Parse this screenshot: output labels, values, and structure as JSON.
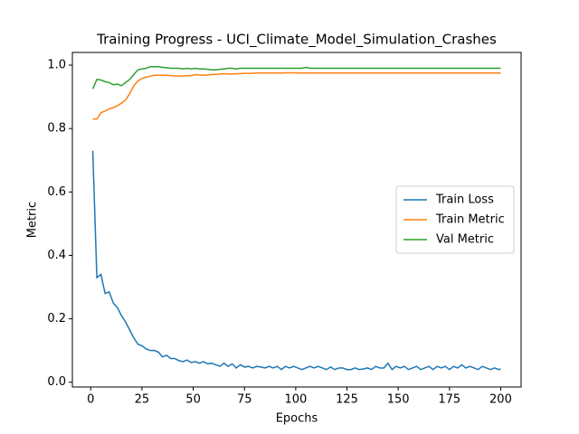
{
  "chart_data": {
    "type": "line",
    "title": "Training Progress - UCI_Climate_Model_Simulation_Crashes",
    "xlabel": "Epochs",
    "ylabel": "Metric",
    "x": [
      1,
      3,
      5,
      7,
      9,
      11,
      13,
      15,
      17,
      19,
      21,
      23,
      25,
      27,
      29,
      31,
      33,
      35,
      37,
      39,
      41,
      43,
      45,
      47,
      49,
      51,
      53,
      55,
      57,
      59,
      61,
      63,
      65,
      67,
      69,
      71,
      73,
      75,
      77,
      79,
      81,
      83,
      85,
      87,
      89,
      91,
      93,
      95,
      97,
      99,
      101,
      103,
      105,
      107,
      109,
      111,
      113,
      115,
      117,
      119,
      121,
      123,
      125,
      127,
      129,
      131,
      133,
      135,
      137,
      139,
      141,
      143,
      145,
      147,
      149,
      151,
      153,
      155,
      157,
      159,
      161,
      163,
      165,
      167,
      169,
      171,
      173,
      175,
      177,
      179,
      181,
      183,
      185,
      187,
      189,
      191,
      193,
      195,
      197,
      199,
      200
    ],
    "series": [
      {
        "name": "Train Loss",
        "color": "#1f77b4",
        "values": [
          0.73,
          0.33,
          0.34,
          0.28,
          0.285,
          0.25,
          0.235,
          0.21,
          0.19,
          0.165,
          0.14,
          0.12,
          0.115,
          0.105,
          0.1,
          0.1,
          0.095,
          0.08,
          0.085,
          0.075,
          0.075,
          0.068,
          0.065,
          0.07,
          0.062,
          0.065,
          0.06,
          0.065,
          0.058,
          0.06,
          0.055,
          0.05,
          0.06,
          0.05,
          0.058,
          0.045,
          0.055,
          0.048,
          0.05,
          0.045,
          0.05,
          0.048,
          0.045,
          0.05,
          0.045,
          0.05,
          0.04,
          0.05,
          0.045,
          0.05,
          0.045,
          0.04,
          0.045,
          0.05,
          0.045,
          0.05,
          0.045,
          0.04,
          0.048,
          0.04,
          0.045,
          0.045,
          0.04,
          0.04,
          0.045,
          0.04,
          0.042,
          0.045,
          0.04,
          0.05,
          0.045,
          0.045,
          0.06,
          0.04,
          0.05,
          0.045,
          0.05,
          0.04,
          0.045,
          0.05,
          0.04,
          0.045,
          0.05,
          0.04,
          0.05,
          0.045,
          0.05,
          0.04,
          0.05,
          0.045,
          0.055,
          0.045,
          0.05,
          0.045,
          0.04,
          0.05,
          0.045,
          0.04,
          0.045,
          0.04,
          0.042
        ]
      },
      {
        "name": "Train Metric",
        "color": "#ff7f0e",
        "values": [
          0.83,
          0.83,
          0.85,
          0.855,
          0.862,
          0.866,
          0.872,
          0.88,
          0.89,
          0.91,
          0.935,
          0.95,
          0.958,
          0.962,
          0.965,
          0.968,
          0.968,
          0.968,
          0.968,
          0.967,
          0.966,
          0.966,
          0.966,
          0.967,
          0.967,
          0.97,
          0.969,
          0.968,
          0.969,
          0.97,
          0.971,
          0.972,
          0.973,
          0.972,
          0.972,
          0.973,
          0.973,
          0.974,
          0.974,
          0.974,
          0.975,
          0.975,
          0.975,
          0.975,
          0.975,
          0.975,
          0.975,
          0.976,
          0.976,
          0.976,
          0.975,
          0.975,
          0.975,
          0.975,
          0.975,
          0.975,
          0.975,
          0.975,
          0.975,
          0.975,
          0.975,
          0.975,
          0.975,
          0.975,
          0.975,
          0.975,
          0.975,
          0.975,
          0.975,
          0.975,
          0.975,
          0.975,
          0.975,
          0.975,
          0.975,
          0.975,
          0.975,
          0.975,
          0.975,
          0.975,
          0.975,
          0.975,
          0.975,
          0.975,
          0.975,
          0.975,
          0.975,
          0.975,
          0.975,
          0.975,
          0.975,
          0.975,
          0.975,
          0.975,
          0.975,
          0.975,
          0.975,
          0.975,
          0.975,
          0.975,
          0.975
        ]
      },
      {
        "name": "Val Metric",
        "color": "#2ca02c",
        "values": [
          0.925,
          0.955,
          0.953,
          0.948,
          0.945,
          0.938,
          0.94,
          0.935,
          0.945,
          0.955,
          0.97,
          0.985,
          0.988,
          0.99,
          0.995,
          0.995,
          0.995,
          0.993,
          0.992,
          0.99,
          0.99,
          0.99,
          0.988,
          0.99,
          0.988,
          0.99,
          0.988,
          0.988,
          0.987,
          0.985,
          0.985,
          0.987,
          0.988,
          0.99,
          0.99,
          0.988,
          0.99,
          0.99,
          0.99,
          0.99,
          0.99,
          0.99,
          0.99,
          0.99,
          0.99,
          0.99,
          0.99,
          0.99,
          0.99,
          0.99,
          0.99,
          0.99,
          0.993,
          0.99,
          0.99,
          0.99,
          0.99,
          0.99,
          0.99,
          0.99,
          0.99,
          0.99,
          0.99,
          0.99,
          0.99,
          0.99,
          0.99,
          0.99,
          0.99,
          0.99,
          0.99,
          0.99,
          0.99,
          0.99,
          0.99,
          0.99,
          0.99,
          0.99,
          0.99,
          0.99,
          0.99,
          0.99,
          0.99,
          0.99,
          0.99,
          0.99,
          0.99,
          0.99,
          0.99,
          0.99,
          0.99,
          0.99,
          0.99,
          0.99,
          0.99,
          0.99,
          0.99,
          0.99,
          0.99,
          0.99,
          0.99
        ]
      }
    ],
    "xlim": [
      -8.95,
      209.95
    ],
    "ylim": [
      -0.015,
      1.04
    ],
    "xticks": [
      0,
      25,
      50,
      75,
      100,
      125,
      150,
      175,
      200
    ],
    "yticks": [
      {
        "value": 0,
        "label": "0.0"
      },
      0.2,
      0.4,
      0.6,
      0.8,
      {
        "value": 1,
        "label": "1.0"
      }
    ],
    "grid": false,
    "legend": "center right"
  }
}
